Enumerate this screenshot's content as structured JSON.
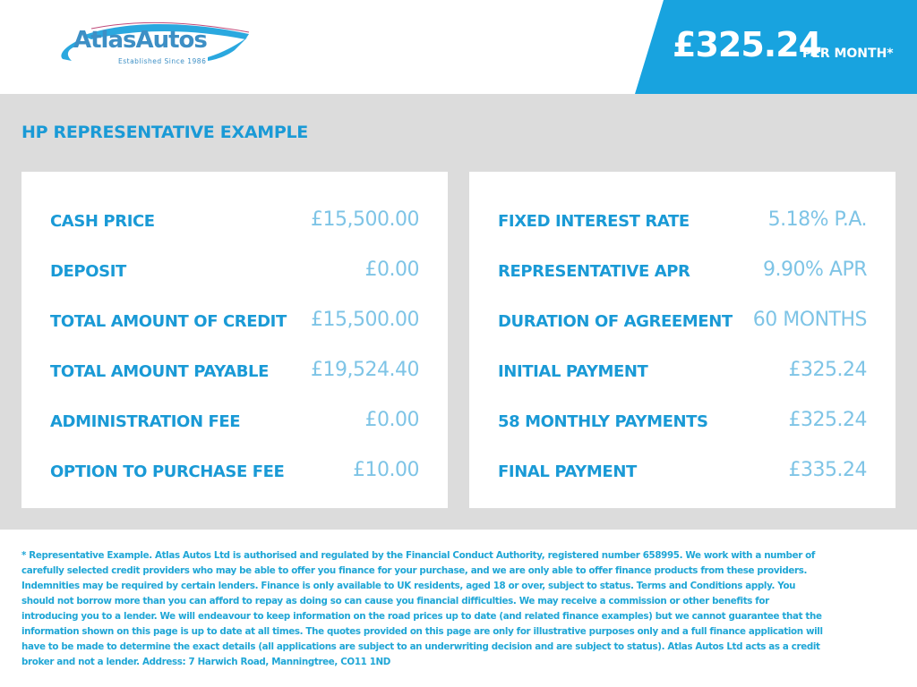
{
  "header": {
    "logo": {
      "name": "AtlasAutos",
      "tagline": "Established Since 1986"
    },
    "price": "£325.24",
    "price_suffix": "PER MONTH*",
    "colors": {
      "accent": "#18a3df",
      "label": "#1a9ad6",
      "value": "#7ec4e6",
      "panel_bg": "#dcdcdc"
    }
  },
  "section_title": "HP REPRESENTATIVE EXAMPLE",
  "left_card": [
    {
      "label": "CASH PRICE",
      "value": "£15,500.00"
    },
    {
      "label": "DEPOSIT",
      "value": "£0.00"
    },
    {
      "label": "TOTAL AMOUNT OF CREDIT",
      "value": "£15,500.00"
    },
    {
      "label": "TOTAL AMOUNT PAYABLE",
      "value": "£19,524.40"
    },
    {
      "label": "ADMINISTRATION FEE",
      "value": "£0.00"
    },
    {
      "label": "OPTION TO PURCHASE FEE",
      "value": "£10.00"
    }
  ],
  "right_card": [
    {
      "label": "FIXED INTEREST RATE",
      "value": "5.18% P.A."
    },
    {
      "label": "REPRESENTATIVE APR",
      "value": "9.90% APR"
    },
    {
      "label": "DURATION OF AGREEMENT",
      "value": "60 MONTHS"
    },
    {
      "label": "INITIAL PAYMENT",
      "value": "£325.24"
    },
    {
      "label": "58 MONTHLY PAYMENTS",
      "value": "£325.24"
    },
    {
      "label": "FINAL PAYMENT",
      "value": "£335.24"
    }
  ],
  "disclaimer": "* Representative Example. Atlas Autos Ltd is authorised and regulated by the Financial Conduct Authority, registered number 658995. We work with a number of carefully selected credit providers who may be able to offer you finance for your purchase, and we are only able to offer finance products from these providers. Indemnities may be required by certain lenders. Finance is only available to UK residents, aged 18 or over, subject to status. Terms and Conditions apply. You should not borrow more than you can afford to repay as doing so can cause you financial difficulties. We may receive a commission or other benefits for introducing you to a lender. We will endeavour to keep information on the road prices up to date (and related finance examples) but we cannot guarantee that the information shown on this page is up to date at all times. The quotes provided on this page are only for illustrative purposes only and a full finance application will have to be made to determine the exact details (all applications are subject to an underwriting decision and are subject to status). Atlas Autos Ltd acts as a credit broker and not a lender. Address: 7 Harwich Road, Manningtree, CO11 1ND"
}
